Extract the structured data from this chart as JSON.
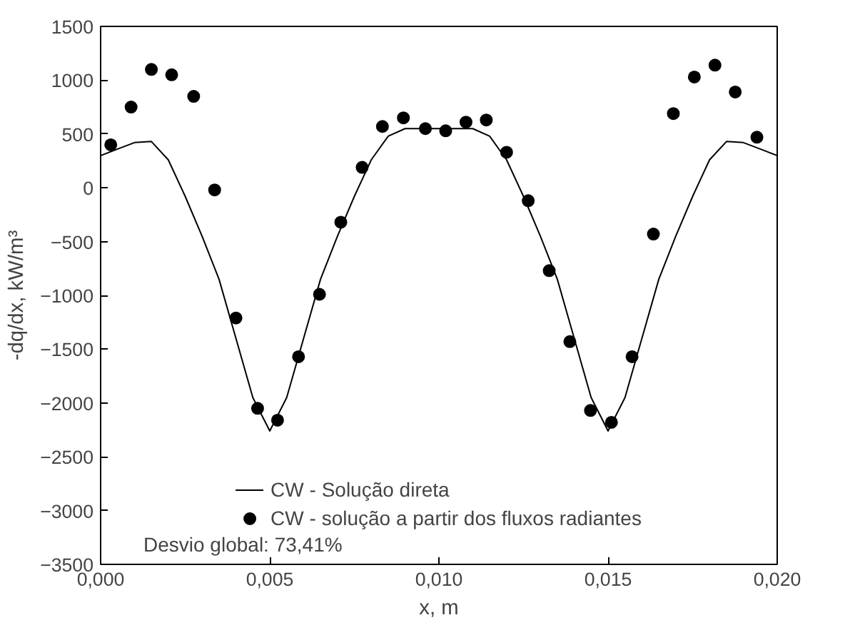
{
  "chart_data": {
    "type": "scatter",
    "xlabel": "x, m",
    "ylabel": "-dq/dx, kW/m³",
    "xlim": [
      0,
      0.02
    ],
    "ylim": [
      -3500,
      1500
    ],
    "xticks": [
      {
        "value": 0,
        "label": "0,000"
      },
      {
        "value": 0.005,
        "label": "0,005"
      },
      {
        "value": 0.01,
        "label": "0,010"
      },
      {
        "value": 0.015,
        "label": "0,015"
      },
      {
        "value": 0.02,
        "label": "0,020"
      }
    ],
    "yticks": [
      -3500,
      -3000,
      -2500,
      -2000,
      -1500,
      -1000,
      -500,
      0,
      500,
      1000,
      1500
    ],
    "grid": false,
    "legend": "bottom",
    "series": [
      {
        "name": "CW - Solução direta",
        "type": "line",
        "color": "#000000",
        "marker": "none",
        "line_style": "solid",
        "x": [
          0,
          0.0005,
          0.001,
          0.0015,
          0.002,
          0.0025,
          0.003,
          0.0035,
          0.004,
          0.0045,
          0.005,
          0.0055,
          0.006,
          0.0065,
          0.007,
          0.0075,
          0.008,
          0.0085,
          0.009,
          0.0095,
          0.01,
          0.0105,
          0.011,
          0.0115,
          0.012,
          0.0125,
          0.013,
          0.0135,
          0.014,
          0.0145,
          0.015,
          0.0155,
          0.016,
          0.0165,
          0.017,
          0.0175,
          0.018,
          0.0185,
          0.019,
          0.0195,
          0.02
        ],
        "values": [
          300,
          360,
          420,
          430,
          260,
          -80,
          -450,
          -850,
          -1400,
          -1950,
          -2260,
          -1950,
          -1400,
          -850,
          -450,
          -80,
          260,
          480,
          550,
          550,
          550,
          550,
          550,
          480,
          260,
          -80,
          -450,
          -850,
          -1400,
          -1950,
          -2260,
          -1950,
          -1400,
          -850,
          -450,
          -80,
          260,
          430,
          420,
          360,
          300
        ]
      },
      {
        "name": "CW - solução a partir dos fluxos radiantes",
        "color": "#000000",
        "marker": "circle",
        "x": [
          0.0003,
          0.0009,
          0.0015,
          0.0021,
          0.00275,
          0.00337,
          0.004,
          0.00464,
          0.00523,
          0.00585,
          0.00647,
          0.0071,
          0.00773,
          0.00833,
          0.00895,
          0.0096,
          0.0102,
          0.0108,
          0.0114,
          0.012,
          0.01264,
          0.01326,
          0.01387,
          0.01448,
          0.0151,
          0.01571,
          0.01634,
          0.01693,
          0.01755,
          0.01816,
          0.01876,
          0.0194
        ],
        "values": [
          400,
          750,
          1100,
          1050,
          850,
          -20,
          -1210,
          -2050,
          -2160,
          -1570,
          -990,
          -320,
          190,
          570,
          650,
          550,
          530,
          610,
          630,
          330,
          -120,
          -770,
          -1430,
          -2070,
          -2180,
          -1570,
          -430,
          690,
          1030,
          1140,
          890,
          470
        ]
      }
    ],
    "annotations": [
      "Desvio global: 73,41%"
    ]
  }
}
